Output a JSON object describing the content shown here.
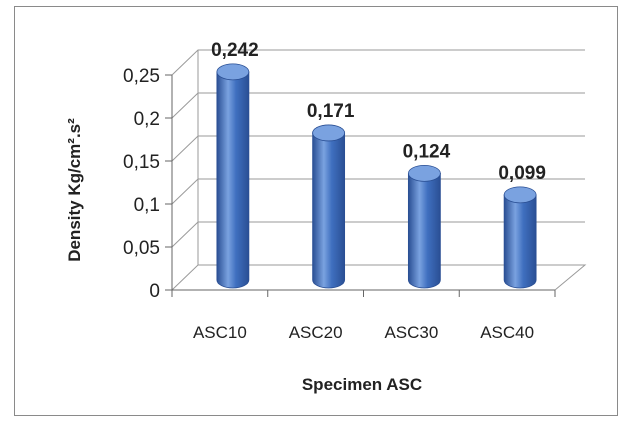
{
  "chart_data": {
    "type": "bar",
    "style": "3d-cylinder",
    "categories": [
      "ASC10",
      "ASC20",
      "ASC30",
      "ASC40"
    ],
    "values": [
      0.242,
      0.171,
      0.124,
      0.099
    ],
    "data_labels": [
      "0,242",
      "0,171",
      "0,124",
      "0,099"
    ],
    "y_ticks": [
      "0",
      "0,05",
      "0,1",
      "0,15",
      "0,2",
      "0,25"
    ],
    "ylim": [
      0,
      0.25
    ],
    "xlabel": "Specimen ASC",
    "ylabel": "Density Kg/cm².s²",
    "grid": true,
    "legend": "none"
  },
  "colors": {
    "bar": "#3f6fbf",
    "bar_dark": "#2a4f94",
    "bar_light": "#7aa2e0",
    "grid": "#9a9a9a"
  }
}
